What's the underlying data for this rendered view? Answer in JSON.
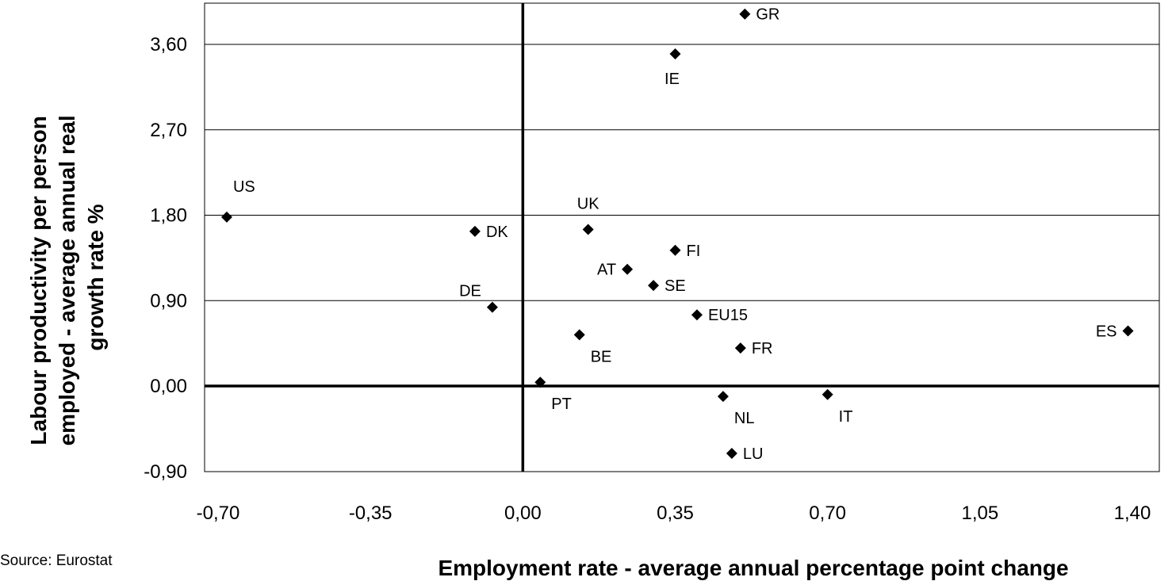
{
  "chart_data": {
    "type": "scatter",
    "xlabel": "Employment rate - average annual percentage point change",
    "ylabel_lines": [
      "Labour productivity per person",
      "employed - average annual real",
      "growth rate %"
    ],
    "xlim": [
      -0.7,
      1.4
    ],
    "ylim": [
      -0.9,
      4.05
    ],
    "x_ticks": [
      -0.7,
      -0.35,
      0.0,
      0.35,
      0.7,
      1.05,
      1.4
    ],
    "x_tick_labels": [
      "-0,70",
      "-0,35",
      "0,00",
      "0,35",
      "0,70",
      "1,05",
      "1,40"
    ],
    "y_ticks": [
      -0.9,
      0.0,
      0.9,
      1.8,
      2.7,
      3.6
    ],
    "y_tick_labels": [
      "-0,90",
      "0,00",
      "0,90",
      "1,80",
      "2,70",
      "3,60"
    ],
    "grid": "horizontal",
    "marker": "diamond",
    "points": [
      {
        "label": "US",
        "x": -0.68,
        "y": 1.78,
        "pos": "above-right"
      },
      {
        "label": "DK",
        "x": -0.11,
        "y": 1.63,
        "pos": "right"
      },
      {
        "label": "DE",
        "x": -0.07,
        "y": 0.83,
        "pos": "above-left"
      },
      {
        "label": "UK",
        "x": 0.15,
        "y": 1.65,
        "pos": "above"
      },
      {
        "label": "AT",
        "x": 0.24,
        "y": 1.23,
        "pos": "left"
      },
      {
        "label": "SE",
        "x": 0.3,
        "y": 1.06,
        "pos": "right"
      },
      {
        "label": "FI",
        "x": 0.35,
        "y": 1.43,
        "pos": "right"
      },
      {
        "label": "EU15",
        "x": 0.4,
        "y": 0.75,
        "pos": "right"
      },
      {
        "label": "BE",
        "x": 0.13,
        "y": 0.54,
        "pos": "below-right"
      },
      {
        "label": "FR",
        "x": 0.5,
        "y": 0.4,
        "pos": "right"
      },
      {
        "label": "PT",
        "x": 0.04,
        "y": 0.04,
        "pos": "below-right"
      },
      {
        "label": "NL",
        "x": 0.46,
        "y": -0.11,
        "pos": "below-right"
      },
      {
        "label": "IT",
        "x": 0.7,
        "y": -0.09,
        "pos": "below-right"
      },
      {
        "label": "LU",
        "x": 0.48,
        "y": -0.71,
        "pos": "right"
      },
      {
        "label": "IE",
        "x": 0.35,
        "y": 3.5,
        "pos": "below"
      },
      {
        "label": "GR",
        "x": 0.51,
        "y": 3.92,
        "pos": "right"
      },
      {
        "label": "ES",
        "x": 1.39,
        "y": 0.58,
        "pos": "left"
      }
    ]
  },
  "source": "Source: Eurostat"
}
